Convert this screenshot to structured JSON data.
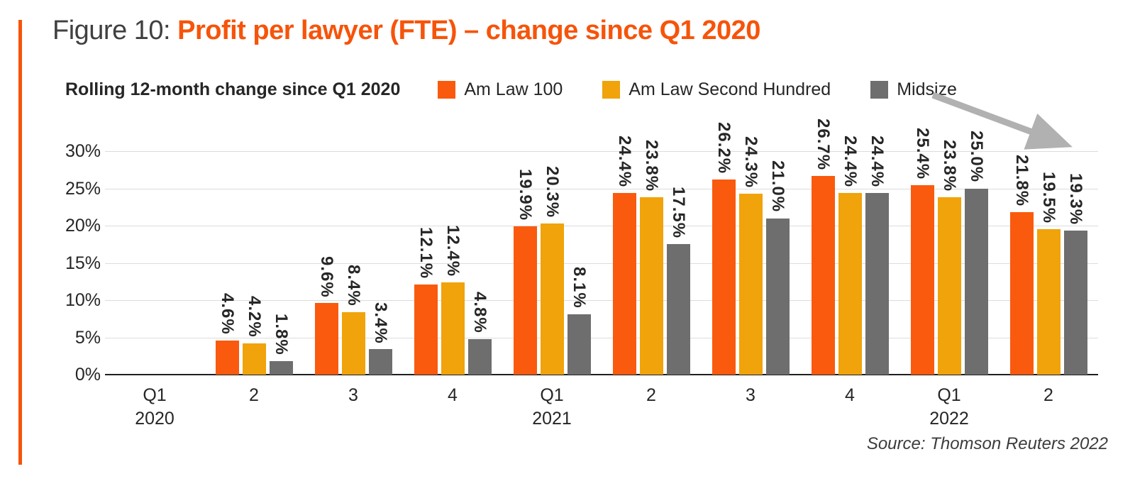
{
  "figure_label": "Figure 10:",
  "figure_title": "Profit per lawyer (FTE) – change since Q1 2020",
  "subtitle": "Rolling 12-month change since Q1 2020",
  "source": "Source: Thomson Reuters 2022",
  "colors": {
    "accent": "#F6540A",
    "grid": "#DCDCDC",
    "axis": "#1F1F1F",
    "text": "#262626",
    "arrow": "#B1B1B1"
  },
  "icons": {
    "trend_arrow": "down-right-arrow"
  },
  "chart_data": {
    "type": "bar",
    "title": "Profit per lawyer (FTE) – change since Q1 2020",
    "subtitle": "Rolling 12-month change since Q1 2020",
    "categories": [
      "Q1 2020",
      "2",
      "3",
      "4",
      "Q1 2021",
      "2",
      "3",
      "4",
      "Q1 2022",
      "2"
    ],
    "category_lines": [
      [
        "Q1",
        "2020"
      ],
      [
        "2",
        ""
      ],
      [
        "3",
        ""
      ],
      [
        "4",
        ""
      ],
      [
        "Q1",
        "2021"
      ],
      [
        "2",
        ""
      ],
      [
        "3",
        ""
      ],
      [
        "4",
        ""
      ],
      [
        "Q1",
        "2022"
      ],
      [
        "2",
        ""
      ]
    ],
    "series": [
      {
        "name": "Am Law 100",
        "color": "#FA5A0E",
        "values": [
          0,
          4.6,
          9.6,
          12.1,
          19.9,
          24.4,
          26.2,
          26.7,
          25.4,
          21.8
        ],
        "labels": [
          "",
          "4.6%",
          "9.6%",
          "12.1%",
          "19.9%",
          "24.4%",
          "26.2%",
          "26.7%",
          "25.4%",
          "21.8%"
        ]
      },
      {
        "name": "Am Law Second Hundred",
        "color": "#F0A30A",
        "values": [
          0,
          4.2,
          8.4,
          12.4,
          20.3,
          23.8,
          24.3,
          24.4,
          23.8,
          19.5
        ],
        "labels": [
          "",
          "4.2%",
          "8.4%",
          "12.4%",
          "20.3%",
          "23.8%",
          "24.3%",
          "24.4%",
          "23.8%",
          "19.5%"
        ]
      },
      {
        "name": "Midsize",
        "color": "#6E6E6E",
        "values": [
          0,
          1.8,
          3.4,
          4.8,
          8.1,
          17.5,
          21.0,
          24.4,
          25.0,
          19.3
        ],
        "labels": [
          "",
          "1.8%",
          "3.4%",
          "4.8%",
          "8.1%",
          "17.5%",
          "21.0%",
          "24.4%",
          "25.0%",
          "19.3%"
        ]
      }
    ],
    "ylabel": "",
    "xlabel": "",
    "ylim": [
      0,
      30
    ],
    "yticks": [
      {
        "value": 30,
        "label": "30%"
      },
      {
        "value": 25,
        "label": "25%"
      },
      {
        "value": 20,
        "label": "20%"
      },
      {
        "value": 15,
        "label": "15%"
      },
      {
        "value": 10,
        "label": "10%"
      },
      {
        "value": 5,
        "label": "5%"
      },
      {
        "value": 0,
        "label": "0%"
      }
    ],
    "grid": "horizontal",
    "legend_position": "top",
    "annotations": [
      {
        "type": "arrow",
        "direction": "down-right",
        "note": "declining trend arrow at top right"
      }
    ]
  }
}
